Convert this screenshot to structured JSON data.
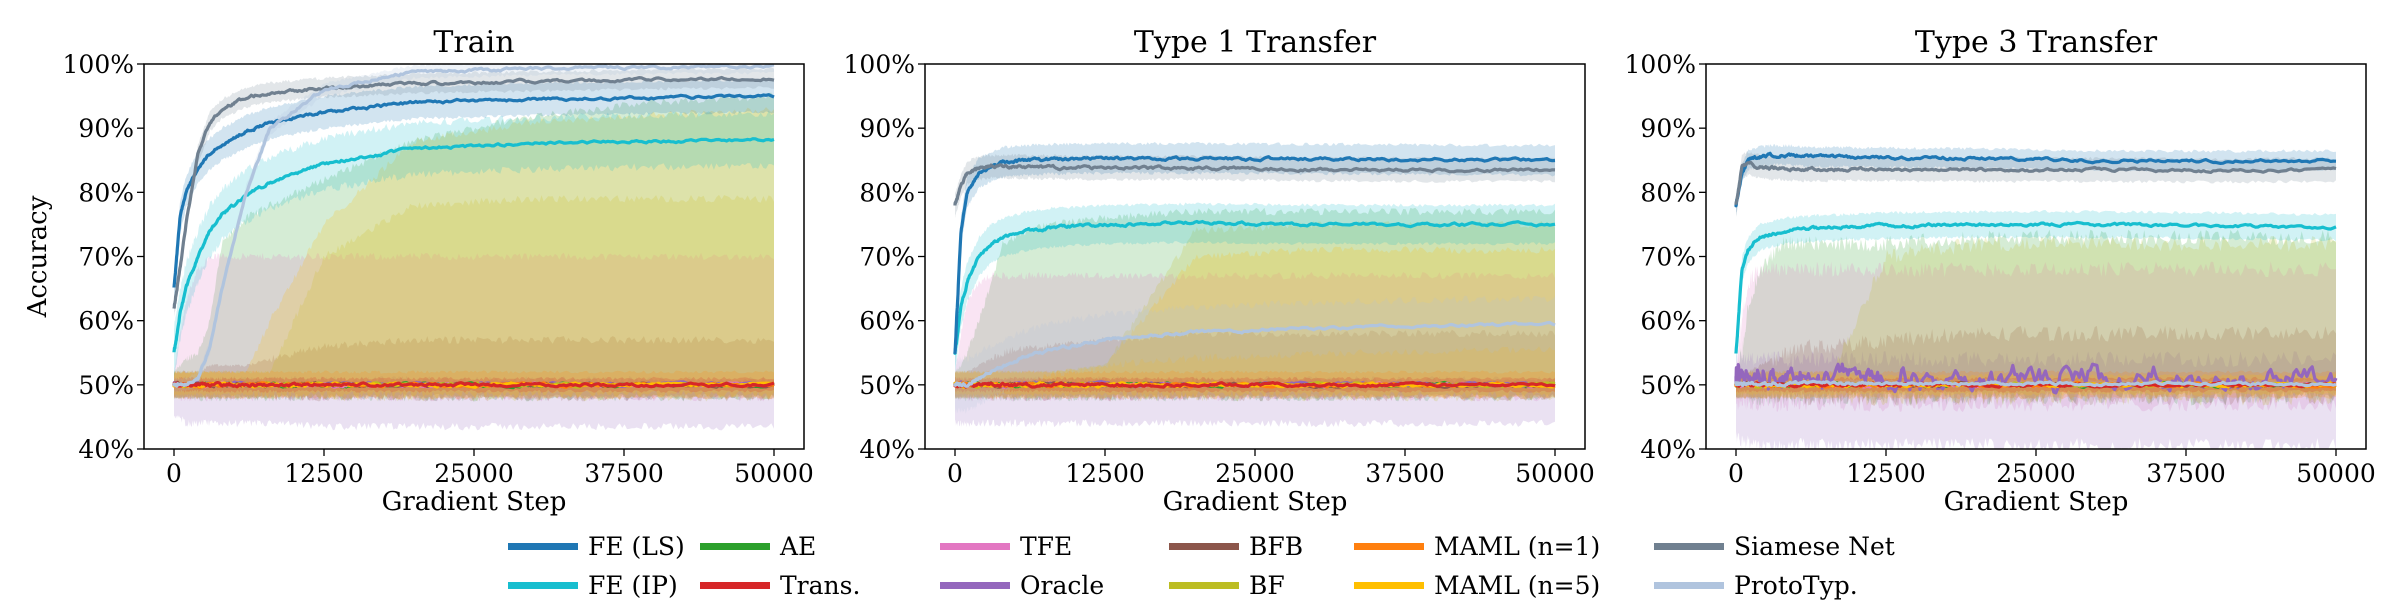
{
  "legend": [
    {
      "name": "FE (LS)",
      "color": "#1f77b4"
    },
    {
      "name": "FE (IP)",
      "color": "#17becf"
    },
    {
      "name": "AE",
      "color": "#2ca02c"
    },
    {
      "name": "Trans.",
      "color": "#d62728"
    },
    {
      "name": "TFE",
      "color": "#e377c2"
    },
    {
      "name": "Oracle",
      "color": "#9467bd"
    },
    {
      "name": "BFB",
      "color": "#8c564b"
    },
    {
      "name": "BF",
      "color": "#bcbd22"
    },
    {
      "name": "MAML (n=1)",
      "color": "#ff7f0e"
    },
    {
      "name": "MAML (n=5)",
      "color": "#ffbf00"
    },
    {
      "name": "Siamese Net",
      "color": "#708090"
    },
    {
      "name": "ProtoTyp.",
      "color": "#b0c4de"
    }
  ],
  "chart_data": [
    {
      "type": "line",
      "title": "Train",
      "xlabel": "Gradient Step",
      "ylabel": "Accuracy",
      "xlim": [
        -2500,
        52500
      ],
      "ylim": [
        40,
        100
      ],
      "xticks": [
        0,
        12500,
        25000,
        37500,
        50000
      ],
      "xtick_labels": [
        "0",
        "12500",
        "25000",
        "37500",
        "50000"
      ],
      "yticks": [
        40,
        50,
        60,
        70,
        80,
        90,
        100
      ],
      "ytick_labels": [
        "40%",
        "50%",
        "60%",
        "70%",
        "80%",
        "90%",
        "100%"
      ],
      "x": [
        0,
        500,
        1000,
        2000,
        3000,
        4000,
        6000,
        8000,
        12500,
        20000,
        30000,
        40000,
        50000
      ],
      "series": [
        {
          "name": "AE",
          "mean": 50,
          "lo": 48,
          "hi": [
            52,
            53,
            54,
            55,
            60,
            72,
            76,
            78,
            82,
            88,
            92,
            94,
            95
          ]
        },
        {
          "name": "TFE",
          "mean": 50,
          "lo": 48,
          "hi": [
            52,
            58,
            63,
            68,
            70,
            70,
            70,
            70,
            70,
            70,
            70,
            70,
            70
          ]
        },
        {
          "name": "Oracle",
          "mean": 50.1,
          "lo": [
            45,
            45,
            44,
            44,
            44,
            44,
            44,
            44,
            43.5,
            43.5,
            43.5,
            43.5,
            43.5
          ],
          "hi": 50.8
        },
        {
          "name": "BFB",
          "mean": 50,
          "lo": 48,
          "hi": [
            52,
            52,
            52,
            52,
            53,
            53,
            53,
            54,
            56,
            57,
            57,
            57,
            57
          ]
        },
        {
          "name": "BF",
          "mean": 50,
          "lo": 48,
          "hi": [
            52,
            52,
            52,
            52,
            52,
            52,
            52,
            52,
            70,
            78,
            79,
            79,
            79
          ]
        },
        {
          "name": "MAML (n=1)",
          "mean": 50,
          "spread": 2
        },
        {
          "name": "MAML (n=5)",
          "mean": 50,
          "lo": 48.5,
          "hi": [
            52,
            52,
            52,
            52,
            52,
            52,
            52,
            60,
            75,
            88,
            91,
            92,
            93
          ]
        },
        {
          "name": "Trans.",
          "mean": 50,
          "spread": 1
        },
        {
          "name": "FE (IP)",
          "mean": [
            55,
            61,
            65,
            70,
            74,
            76.5,
            79.5,
            81.5,
            84.5,
            86.8,
            87.6,
            88,
            88.2
          ],
          "spread": 4
        },
        {
          "name": "FE (LS)",
          "mean": [
            65,
            76,
            80,
            84,
            86,
            87.5,
            89.5,
            90.8,
            92.5,
            94,
            94.5,
            94.8,
            95
          ],
          "spread": 2.5
        },
        {
          "name": "Siamese Net",
          "mean": [
            62,
            68,
            75,
            86,
            91,
            93,
            94.8,
            95.6,
            96.3,
            97,
            97.3,
            97.6,
            97.8
          ],
          "spread": 1.5
        },
        {
          "name": "ProtoTyp.",
          "mean": [
            50,
            50,
            50,
            51,
            56,
            65,
            80,
            90,
            96,
            98.8,
            99.3,
            99.5,
            99.6
          ],
          "spread": 1
        }
      ]
    },
    {
      "type": "line",
      "title": "Type 1 Transfer",
      "xlabel": "Gradient Step",
      "ylabel": "",
      "xlim": [
        -2500,
        52500
      ],
      "ylim": [
        40,
        100
      ],
      "xticks": [
        0,
        12500,
        25000,
        37500,
        50000
      ],
      "xtick_labels": [
        "0",
        "12500",
        "25000",
        "37500",
        "50000"
      ],
      "yticks": [
        40,
        50,
        60,
        70,
        80,
        90,
        100
      ],
      "ytick_labels": [
        "40%",
        "50%",
        "60%",
        "70%",
        "80%",
        "90%",
        "100%"
      ],
      "x": [
        0,
        500,
        1000,
        2000,
        3000,
        4000,
        6000,
        8000,
        12500,
        20000,
        30000,
        40000,
        50000
      ],
      "series": [
        {
          "name": "AE",
          "mean": 50,
          "lo": 48,
          "hi": [
            52,
            53,
            55,
            60,
            66,
            72,
            74,
            75,
            76,
            77,
            77,
            77,
            77
          ]
        },
        {
          "name": "TFE",
          "mean": 50,
          "lo": 48,
          "hi": [
            52,
            58,
            63,
            66,
            67,
            67,
            67,
            67,
            67,
            67,
            67,
            67,
            67
          ]
        },
        {
          "name": "Oracle",
          "mean": 50.1,
          "lo": 44,
          "hi": 50.8
        },
        {
          "name": "BFB",
          "mean": 50,
          "lo": 48,
          "hi": [
            52,
            52,
            52,
            53,
            54,
            55,
            56,
            56,
            57,
            58,
            58,
            58,
            58
          ]
        },
        {
          "name": "BF",
          "mean": 50,
          "lo": 48,
          "hi": [
            52,
            52,
            52,
            52,
            52,
            52,
            52,
            52,
            53,
            74,
            75,
            75,
            75
          ]
        },
        {
          "name": "MAML (n=1)",
          "mean": 50,
          "spread": 2
        },
        {
          "name": "MAML (n=5)",
          "mean": 50,
          "lo": 48.5,
          "hi": [
            52,
            52,
            52,
            52,
            52,
            52,
            52,
            52,
            53,
            70,
            71,
            71,
            71
          ]
        },
        {
          "name": "Trans.",
          "mean": 50,
          "spread": 1
        },
        {
          "name": "FE (IP)",
          "mean": [
            55,
            62,
            66,
            70,
            72,
            73,
            74,
            74.5,
            75,
            75.2,
            75,
            75,
            75
          ],
          "spread": 3
        },
        {
          "name": "FE (LS)",
          "mean": [
            55,
            74,
            80,
            83,
            84,
            84.7,
            85,
            85.2,
            85.3,
            85.3,
            85.2,
            85.1,
            85
          ],
          "spread": 2.3
        },
        {
          "name": "Siamese Net",
          "mean": [
            78,
            81,
            83,
            83.8,
            84,
            84,
            84,
            83.9,
            83.8,
            83.8,
            83.6,
            83.5,
            83.5
          ],
          "spread": 1.8
        },
        {
          "name": "ProtoTyp.",
          "mean": [
            50,
            50,
            50,
            51,
            52,
            53,
            54.5,
            55.5,
            57,
            58.2,
            58.8,
            59.2,
            59.5
          ],
          "spread": 4
        }
      ]
    },
    {
      "type": "line",
      "title": "Type 3 Transfer",
      "xlabel": "Gradient Step",
      "ylabel": "",
      "xlim": [
        -2500,
        52500
      ],
      "ylim": [
        40,
        100
      ],
      "xticks": [
        0,
        12500,
        25000,
        37500,
        50000
      ],
      "xtick_labels": [
        "0",
        "12500",
        "25000",
        "37500",
        "50000"
      ],
      "yticks": [
        40,
        50,
        60,
        70,
        80,
        90,
        100
      ],
      "ytick_labels": [
        "40%",
        "50%",
        "60%",
        "70%",
        "80%",
        "90%",
        "100%"
      ],
      "x": [
        0,
        500,
        1000,
        2000,
        3000,
        4000,
        6000,
        8000,
        12500,
        20000,
        30000,
        40000,
        50000
      ],
      "series": [
        {
          "name": "AE",
          "mean": 50,
          "lo": 48,
          "hi": [
            52,
            55,
            62,
            68,
            70,
            72,
            72,
            72,
            72,
            73,
            73,
            73,
            73
          ]
        },
        {
          "name": "TFE",
          "mean": 50,
          "lo": 47,
          "hi": [
            52,
            60,
            66,
            68,
            68,
            68,
            68,
            68,
            68,
            68,
            68,
            68,
            68
          ]
        },
        {
          "name": "Oracle",
          "mean": 50.5,
          "lo": [
            42,
            41,
            41,
            40.5,
            40.5,
            40.5,
            40.5,
            40.5,
            40.5,
            40.5,
            40.5,
            40.5,
            40.5
          ],
          "hi": 54
        },
        {
          "name": "BFB",
          "mean": 50,
          "lo": 48,
          "hi": [
            52,
            52,
            52,
            53,
            54,
            55,
            56,
            56,
            57,
            58,
            58,
            58,
            58
          ]
        },
        {
          "name": "BF",
          "mean": 50,
          "lo": 48,
          "hi": [
            52,
            52,
            52,
            52,
            52,
            52,
            52,
            52,
            70,
            72,
            72,
            72,
            72
          ]
        },
        {
          "name": "MAML (n=1)",
          "mean": 50,
          "spread": 2
        },
        {
          "name": "MAML (n=5)",
          "mean": 50,
          "spread": 1.5
        },
        {
          "name": "Trans.",
          "mean": 50,
          "spread": 1
        },
        {
          "name": "ProtoTyp.",
          "mean": 50.2,
          "spread": 0.5
        },
        {
          "name": "FE (IP)",
          "mean": [
            55,
            68,
            71,
            73,
            73.5,
            74,
            74.3,
            74.5,
            74.8,
            75,
            75,
            74.8,
            74.5
          ],
          "spread": 2
        },
        {
          "name": "FE (LS)",
          "mean": [
            78,
            83,
            85,
            85.6,
            85.8,
            85.8,
            85.6,
            85.5,
            85.4,
            85.3,
            85,
            84.9,
            85
          ],
          "spread": 1.5
        },
        {
          "name": "Siamese Net",
          "mean": [
            78,
            84,
            84.5,
            84,
            83.8,
            83.7,
            83.6,
            83.6,
            83.6,
            83.5,
            83.5,
            83.4,
            83.5
          ],
          "spread": 1.8
        }
      ]
    }
  ]
}
